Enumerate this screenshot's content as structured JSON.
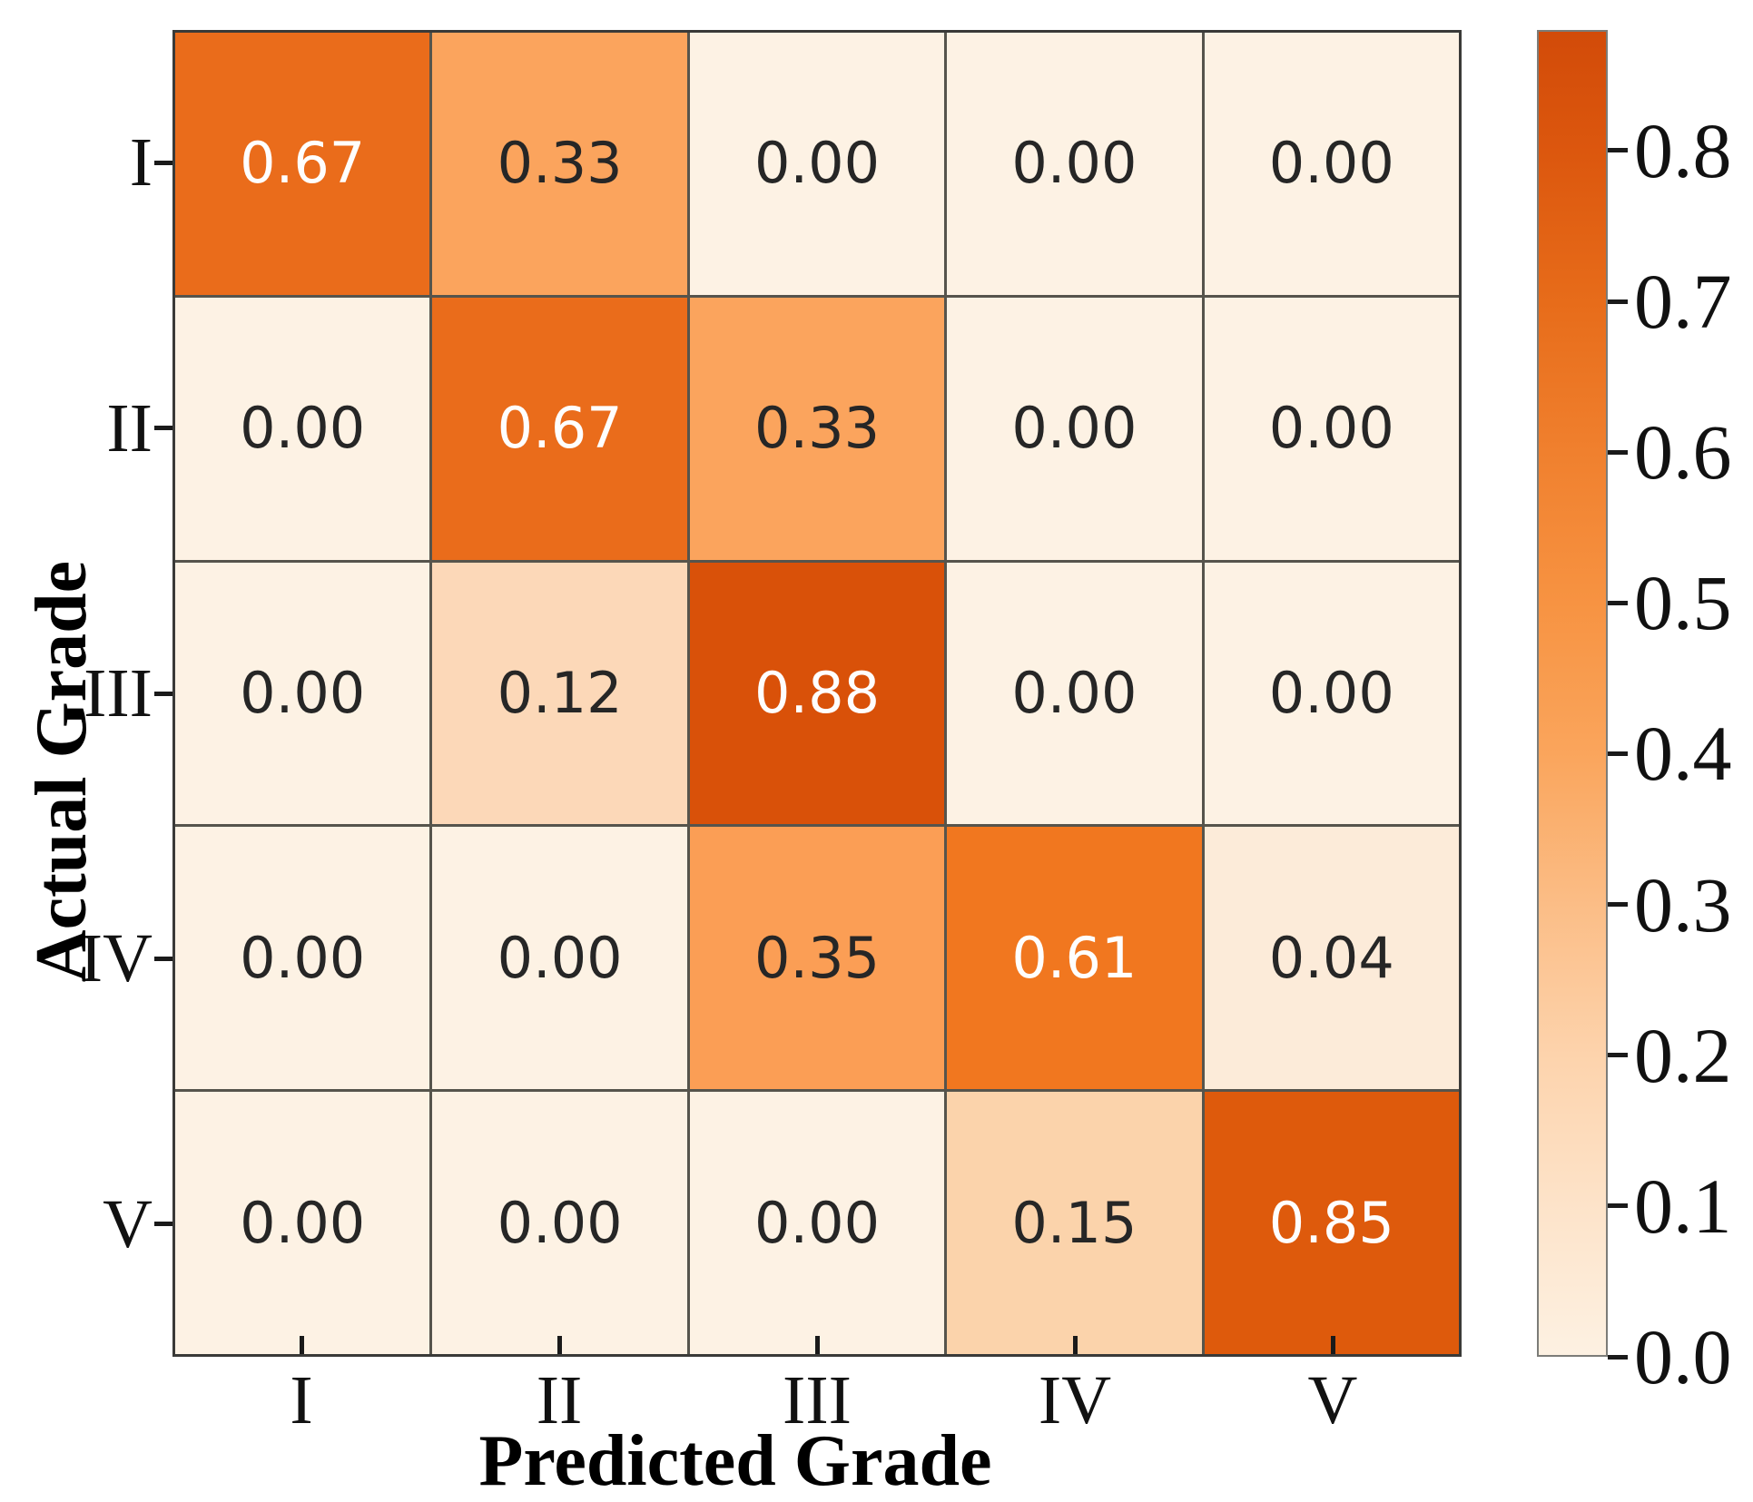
{
  "chart_data": {
    "type": "heatmap",
    "title": "",
    "xlabel": "Predicted Grade",
    "ylabel": "Actual Grade",
    "x_categories": [
      "I",
      "II",
      "III",
      "IV",
      "V"
    ],
    "y_categories": [
      "I",
      "II",
      "III",
      "IV",
      "V"
    ],
    "values": [
      [
        0.67,
        0.33,
        0.0,
        0.0,
        0.0
      ],
      [
        0.0,
        0.67,
        0.33,
        0.0,
        0.0
      ],
      [
        0.0,
        0.12,
        0.88,
        0.0,
        0.0
      ],
      [
        0.0,
        0.0,
        0.35,
        0.61,
        0.04
      ],
      [
        0.0,
        0.0,
        0.0,
        0.15,
        0.85
      ]
    ],
    "value_labels": [
      [
        "0.67",
        "0.33",
        "0.00",
        "0.00",
        "0.00"
      ],
      [
        "0.00",
        "0.67",
        "0.33",
        "0.00",
        "0.00"
      ],
      [
        "0.00",
        "0.12",
        "0.88",
        "0.00",
        "0.00"
      ],
      [
        "0.00",
        "0.00",
        "0.35",
        "0.61",
        "0.04"
      ],
      [
        "0.00",
        "0.00",
        "0.00",
        "0.15",
        "0.85"
      ]
    ],
    "cell_colors": [
      [
        "#ea6c1b",
        "#fba45d",
        "#fdf2e4",
        "#fdf2e4",
        "#fdf2e4"
      ],
      [
        "#fdf2e4",
        "#ea6c1b",
        "#fba45d",
        "#fdf2e4",
        "#fdf2e4"
      ],
      [
        "#fdf2e4",
        "#fcd8b8",
        "#d95109",
        "#fdf2e4",
        "#fdf2e4"
      ],
      [
        "#fdf2e4",
        "#fdf2e4",
        "#fb9e55",
        "#f1771f",
        "#fcebd9"
      ],
      [
        "#fdf2e4",
        "#fdf2e4",
        "#fdf2e4",
        "#fbd3ab",
        "#de5a0c"
      ]
    ],
    "cell_text_dark_color": "#262626",
    "cell_text_light_color": "#fefefe",
    "colormap": "Oranges",
    "colorbar_range": [
      0.0,
      0.88
    ],
    "colorbar_ticks": [
      "0.8",
      "0.7",
      "0.6",
      "0.5",
      "0.4",
      "0.3",
      "0.2",
      "0.1",
      "0.0"
    ],
    "colorbar_gradient": [
      {
        "v": 0.88,
        "color": "#d24b09"
      },
      {
        "v": 0.8,
        "color": "#dc570e"
      },
      {
        "v": 0.7,
        "color": "#e76c1a"
      },
      {
        "v": 0.6,
        "color": "#f0802e"
      },
      {
        "v": 0.5,
        "color": "#f79342"
      },
      {
        "v": 0.4,
        "color": "#faa55c"
      },
      {
        "v": 0.3,
        "color": "#fbbd86"
      },
      {
        "v": 0.2,
        "color": "#fdd3ac"
      },
      {
        "v": 0.1,
        "color": "#fde3c9"
      },
      {
        "v": 0.0,
        "color": "#fdf1e2"
      }
    ],
    "grid_line_color": "#56544c",
    "tick_color": "#1a1a1a",
    "legend_position": "right-colorbar",
    "grid": true
  }
}
